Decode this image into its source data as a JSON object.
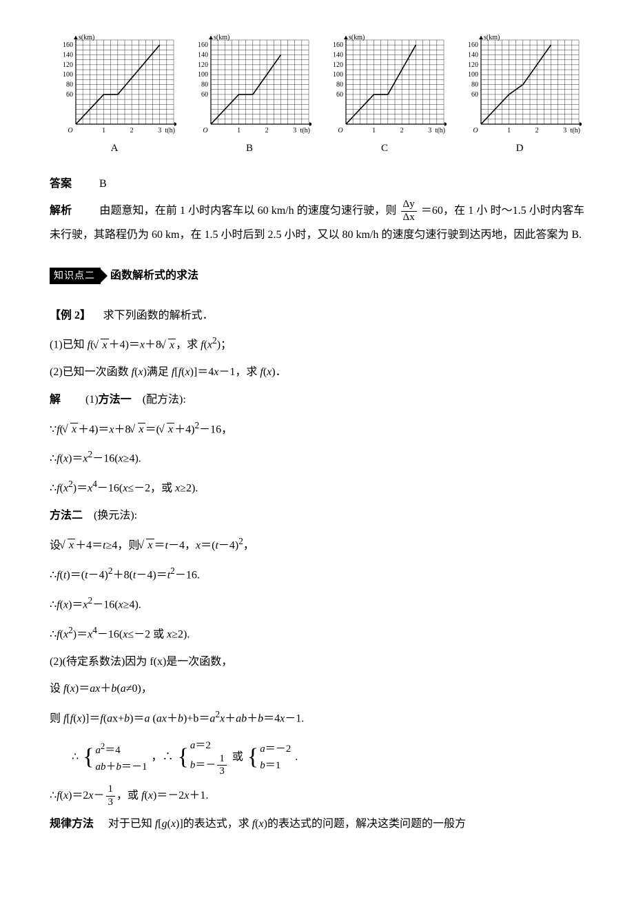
{
  "charts": {
    "y_label": "s(km)",
    "x_label": "t(h)",
    "y_ticks": [
      60,
      80,
      100,
      120,
      140,
      160
    ],
    "x_ticks": [
      1,
      2,
      3
    ],
    "grid_color": "#000000",
    "axis_color": "#000000",
    "line_color": "#000000",
    "background_color": "#ffffff",
    "xlim": [
      0,
      3.5
    ],
    "ylim": [
      0,
      170
    ],
    "tick_fontsize": 10,
    "label_fontsize": 10,
    "grid_minor_step_x": 0.25,
    "grid_minor_step_y": 10,
    "items": [
      {
        "id": "A",
        "segments": [
          [
            0,
            0
          ],
          [
            1,
            60
          ],
          [
            1.5,
            60
          ],
          [
            3,
            160
          ]
        ]
      },
      {
        "id": "B",
        "segments": [
          [
            0,
            0
          ],
          [
            1,
            60
          ],
          [
            1.5,
            60
          ],
          [
            2.5,
            140
          ]
        ]
      },
      {
        "id": "C",
        "segments": [
          [
            0,
            0
          ],
          [
            1,
            60
          ],
          [
            1.5,
            60
          ],
          [
            2.5,
            160
          ]
        ]
      },
      {
        "id": "D",
        "segments": [
          [
            0,
            0
          ],
          [
            1,
            60
          ],
          [
            1.5,
            80
          ],
          [
            2.5,
            160
          ]
        ]
      }
    ]
  },
  "answer_label": "答案",
  "answer_value": "B",
  "analysis_label": "解析",
  "analysis_text_1": "由题意知，在前 1 小时内客车以 60 km/h 的速度匀速行驶，则",
  "analysis_frac_num": "Δy",
  "analysis_frac_den": "Δx",
  "analysis_text_1b": "＝60，在 1 小",
  "analysis_text_2": "时～1.5 小时内客车未行驶，其路程仍为 60 km，在 1.5 小时后到 2.5 小时，又以 80 km/h 的速度匀速行驶到达丙地，因此答案为 B.",
  "section_tag": "知识点二",
  "section_title": "函数解析式的求法",
  "ex2_head": "【例 2】",
  "ex2_intro": "求下列函数的解析式．",
  "ex2_q1": "(1)已知 f(√x＋4)＝x＋8√x，求 f(x²)；",
  "ex2_q2": "(2)已知一次函数 f(x)满足 f[f(x)]＝4x－1，求 f(x)．",
  "sol_label": "解",
  "m1_label": "(1)方法一　(配方法):",
  "m1_l1": "∵f(√x＋4)＝x＋8√x＝(√x＋4)²－16，",
  "m1_l2": "∴f(x)＝x²－16(x≥4).",
  "m1_l3": "∴f(x²)＝x⁴－16(x≤－2，或 x≥2).",
  "m2_label": "方法二　(换元法):",
  "m2_l1": "设√x＋4＝t≥4，则√x＝t－4，x＝(t－4)²，",
  "m2_l2": "∴f(t)＝(t－4)²＋8(t－4)＝t²－16.",
  "m2_l3": "∴f(x)＝x²－16(x≥4).",
  "m2_l4": "∴f(x²)＝x⁴－16(x≤－2 或 x≥2).",
  "p2_l1": "(2)(待定系数法)因为 f(x)是一次函数，",
  "p2_l2": "设 f(x)＝ax＋b(a≠0)，",
  "p2_l3": "则 f[f(x)]＝f(ax+b)＝a (ax＋b)+b＝a²x＋ab＋b＝4x－1.",
  "sys1_a": "a²＝4",
  "sys1_b": "ab＋b＝－1",
  "sys2_a": "a＝2",
  "sys2_b_pre": "b＝－",
  "sys2_b_num": "1",
  "sys2_b_den": "3",
  "sys_or": "或",
  "sys3_a": "a＝－2",
  "sys3_b": "b＝1",
  "final_pre": "∴f(x)＝2x－",
  "final_num": "1",
  "final_den": "3",
  "final_post": "，或 f(x)＝－2x＋1.",
  "rule_label": "规律方法",
  "rule_text": "对于已知 f[g(x)]的表达式，求 f(x)的表达式的问题，解决这类问题的一般方"
}
